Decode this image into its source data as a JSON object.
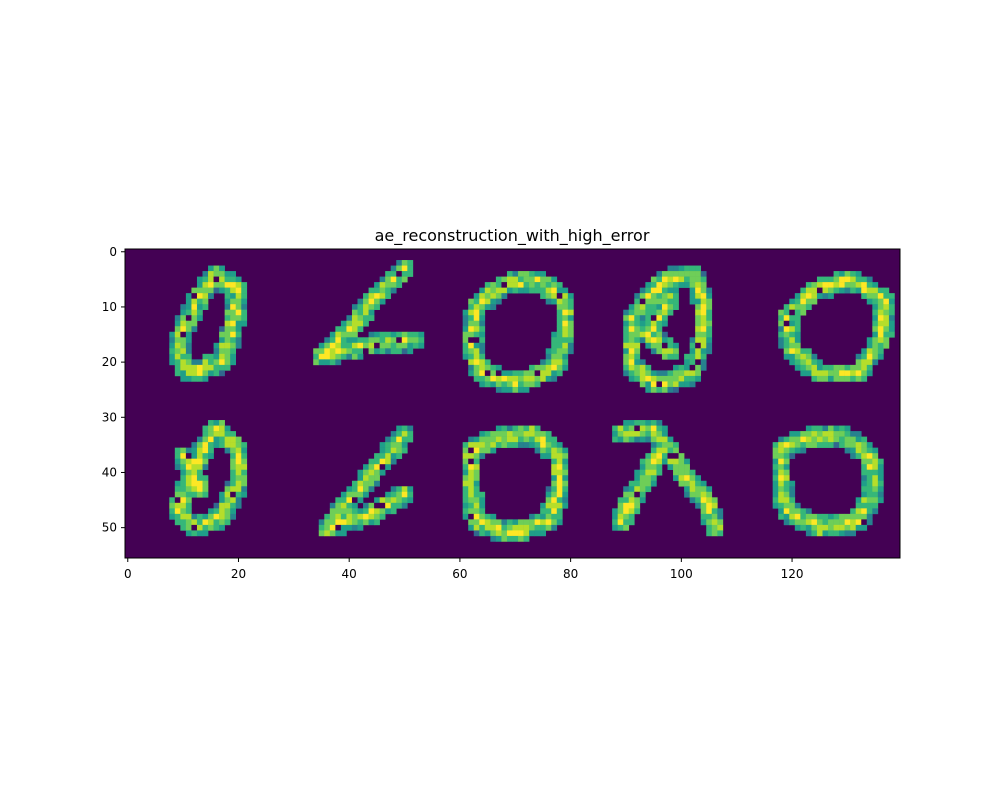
{
  "chart_data": {
    "type": "heatmap",
    "title": "ae_reconstruction_with_high_error",
    "xlabel": "",
    "ylabel": "",
    "image_shape": [
      56,
      140
    ],
    "xlim": [
      -0.5,
      139.5
    ],
    "ylim": [
      55.5,
      -0.5
    ],
    "x_ticks": [
      0,
      20,
      40,
      60,
      80,
      100,
      120
    ],
    "y_ticks": [
      0,
      10,
      20,
      30,
      40,
      50
    ],
    "colormap": "viridis",
    "colors": {
      "background": "#440154",
      "low": "#31688e",
      "mid": "#35b779",
      "high": "#fde725"
    },
    "grid": false,
    "panels": [
      {
        "row": 0,
        "col": 0,
        "digit": "0"
      },
      {
        "row": 0,
        "col": 1,
        "digit": "6"
      },
      {
        "row": 0,
        "col": 2,
        "digit": "0"
      },
      {
        "row": 0,
        "col": 3,
        "digit": "0"
      },
      {
        "row": 0,
        "col": 4,
        "digit": "0"
      },
      {
        "row": 1,
        "col": 0,
        "digit": "0"
      },
      {
        "row": 1,
        "col": 1,
        "digit": "0"
      },
      {
        "row": 1,
        "col": 2,
        "digit": "0"
      },
      {
        "row": 1,
        "col": 3,
        "digit": "2"
      },
      {
        "row": 1,
        "col": 4,
        "digit": "0"
      }
    ]
  }
}
